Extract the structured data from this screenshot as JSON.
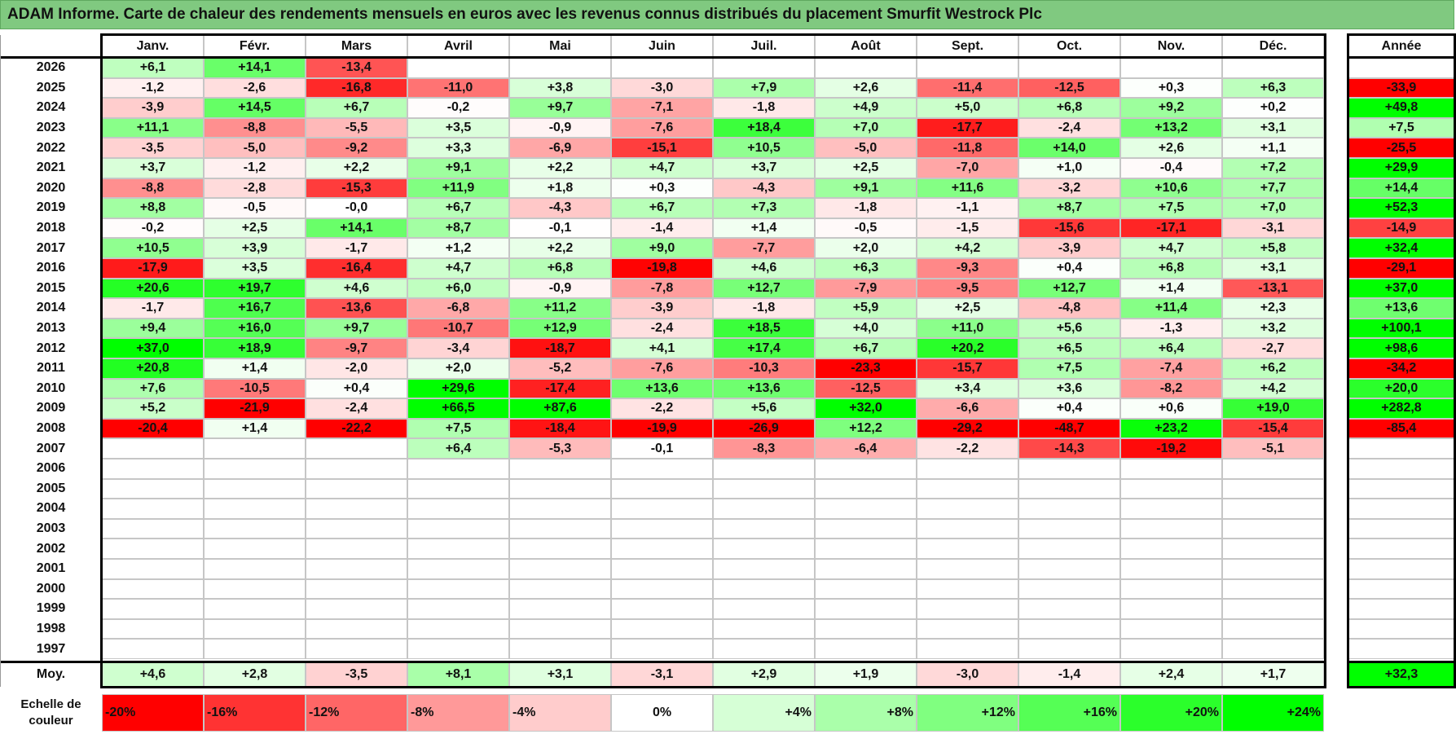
{
  "title": "ADAM Informe. Carte de chaleur des rendements mensuels en euros avec les revenus connus distribués du placement Smurfit Westrock Plc",
  "chart_data": {
    "type": "heatmap",
    "columns": [
      "Janv.",
      "Févr.",
      "Mars",
      "Avril",
      "Mai",
      "Juin",
      "Juil.",
      "Août",
      "Sept.",
      "Oct.",
      "Nov.",
      "Déc."
    ],
    "annual_header": "Année",
    "rows": [
      {
        "year": "2026",
        "values": [
          "+6,1",
          "+14,1",
          "-13,4",
          "",
          "",
          "",
          "",
          "",
          "",
          "",
          "",
          ""
        ],
        "annual": ""
      },
      {
        "year": "2025",
        "values": [
          "-1,2",
          "-2,6",
          "-16,8",
          "-11,0",
          "+3,8",
          "-3,0",
          "+7,9",
          "+2,6",
          "-11,4",
          "-12,5",
          "+0,3",
          "+6,3"
        ],
        "annual": "-33,9"
      },
      {
        "year": "2024",
        "values": [
          "-3,9",
          "+14,5",
          "+6,7",
          "-0,2",
          "+9,7",
          "-7,1",
          "-1,8",
          "+4,9",
          "+5,0",
          "+6,8",
          "+9,2",
          "+0,2"
        ],
        "annual": "+49,8"
      },
      {
        "year": "2023",
        "values": [
          "+11,1",
          "-8,8",
          "-5,5",
          "+3,5",
          "-0,9",
          "-7,6",
          "+18,4",
          "+7,0",
          "-17,7",
          "-2,4",
          "+13,2",
          "+3,1"
        ],
        "annual": "+7,5"
      },
      {
        "year": "2022",
        "values": [
          "-3,5",
          "-5,0",
          "-9,2",
          "+3,3",
          "-6,9",
          "-15,1",
          "+10,5",
          "-5,0",
          "-11,8",
          "+14,0",
          "+2,6",
          "+1,1"
        ],
        "annual": "-25,5"
      },
      {
        "year": "2021",
        "values": [
          "+3,7",
          "-1,2",
          "+2,2",
          "+9,1",
          "+2,2",
          "+4,7",
          "+3,7",
          "+2,5",
          "-7,0",
          "+1,0",
          "-0,4",
          "+7,2"
        ],
        "annual": "+29,9"
      },
      {
        "year": "2020",
        "values": [
          "-8,8",
          "-2,8",
          "-15,3",
          "+11,9",
          "+1,8",
          "+0,3",
          "-4,3",
          "+9,1",
          "+11,6",
          "-3,2",
          "+10,6",
          "+7,7"
        ],
        "annual": "+14,4"
      },
      {
        "year": "2019",
        "values": [
          "+8,8",
          "-0,5",
          "-0,0",
          "+6,7",
          "-4,3",
          "+6,7",
          "+7,3",
          "-1,8",
          "-1,1",
          "+8,7",
          "+7,5",
          "+7,0"
        ],
        "annual": "+52,3"
      },
      {
        "year": "2018",
        "values": [
          "-0,2",
          "+2,5",
          "+14,1",
          "+8,7",
          "-0,1",
          "-1,4",
          "+1,4",
          "-0,5",
          "-1,5",
          "-15,6",
          "-17,1",
          "-3,1"
        ],
        "annual": "-14,9"
      },
      {
        "year": "2017",
        "values": [
          "+10,5",
          "+3,9",
          "-1,7",
          "+1,2",
          "+2,2",
          "+9,0",
          "-7,7",
          "+2,0",
          "+4,2",
          "-3,9",
          "+4,7",
          "+5,8"
        ],
        "annual": "+32,4"
      },
      {
        "year": "2016",
        "values": [
          "-17,9",
          "+3,5",
          "-16,4",
          "+4,7",
          "+6,8",
          "-19,8",
          "+4,6",
          "+6,3",
          "-9,3",
          "+0,4",
          "+6,8",
          "+3,1"
        ],
        "annual": "-29,1"
      },
      {
        "year": "2015",
        "values": [
          "+20,6",
          "+19,7",
          "+4,6",
          "+6,0",
          "-0,9",
          "-7,8",
          "+12,7",
          "-7,9",
          "-9,5",
          "+12,7",
          "+1,4",
          "-13,1"
        ],
        "annual": "+37,0"
      },
      {
        "year": "2014",
        "values": [
          "-1,7",
          "+16,7",
          "-13,6",
          "-6,8",
          "+11,2",
          "-3,9",
          "-1,8",
          "+5,9",
          "+2,5",
          "-4,8",
          "+11,4",
          "+2,3"
        ],
        "annual": "+13,6"
      },
      {
        "year": "2013",
        "values": [
          "+9,4",
          "+16,0",
          "+9,7",
          "-10,7",
          "+12,9",
          "-2,4",
          "+18,5",
          "+4,0",
          "+11,0",
          "+5,6",
          "-1,3",
          "+3,2"
        ],
        "annual": "+100,1"
      },
      {
        "year": "2012",
        "values": [
          "+37,0",
          "+18,9",
          "-9,7",
          "-3,4",
          "-18,7",
          "+4,1",
          "+17,4",
          "+6,7",
          "+20,2",
          "+6,5",
          "+6,4",
          "-2,7"
        ],
        "annual": "+98,6"
      },
      {
        "year": "2011",
        "values": [
          "+20,8",
          "+1,4",
          "-2,0",
          "+2,0",
          "-5,2",
          "-7,6",
          "-10,3",
          "-23,3",
          "-15,7",
          "+7,5",
          "-7,4",
          "+6,2"
        ],
        "annual": "-34,2"
      },
      {
        "year": "2010",
        "values": [
          "+7,6",
          "-10,5",
          "+0,4",
          "+29,6",
          "-17,4",
          "+13,6",
          "+13,6",
          "-12,5",
          "+3,4",
          "+3,6",
          "-8,2",
          "+4,2"
        ],
        "annual": "+20,0"
      },
      {
        "year": "2009",
        "values": [
          "+5,2",
          "-21,9",
          "-2,4",
          "+66,5",
          "+87,6",
          "-2,2",
          "+5,6",
          "+32,0",
          "-6,6",
          "+0,4",
          "+0,6",
          "+19,0"
        ],
        "annual": "+282,8"
      },
      {
        "year": "2008",
        "values": [
          "-20,4",
          "+1,4",
          "-22,2",
          "+7,5",
          "-18,4",
          "-19,9",
          "-26,9",
          "+12,2",
          "-29,2",
          "-48,7",
          "+23,2",
          "-15,4"
        ],
        "annual": "-85,4"
      },
      {
        "year": "2007",
        "values": [
          "",
          "",
          "",
          "+6,4",
          "-5,3",
          "-0,1",
          "-8,3",
          "-6,4",
          "-2,2",
          "-14,3",
          "-19,2",
          "-5,1"
        ],
        "annual": ""
      },
      {
        "year": "2006",
        "values": [
          "",
          "",
          "",
          "",
          "",
          "",
          "",
          "",
          "",
          "",
          "",
          ""
        ],
        "annual": ""
      },
      {
        "year": "2005",
        "values": [
          "",
          "",
          "",
          "",
          "",
          "",
          "",
          "",
          "",
          "",
          "",
          ""
        ],
        "annual": ""
      },
      {
        "year": "2004",
        "values": [
          "",
          "",
          "",
          "",
          "",
          "",
          "",
          "",
          "",
          "",
          "",
          ""
        ],
        "annual": ""
      },
      {
        "year": "2003",
        "values": [
          "",
          "",
          "",
          "",
          "",
          "",
          "",
          "",
          "",
          "",
          "",
          ""
        ],
        "annual": ""
      },
      {
        "year": "2002",
        "values": [
          "",
          "",
          "",
          "",
          "",
          "",
          "",
          "",
          "",
          "",
          "",
          ""
        ],
        "annual": ""
      },
      {
        "year": "2001",
        "values": [
          "",
          "",
          "",
          "",
          "",
          "",
          "",
          "",
          "",
          "",
          "",
          ""
        ],
        "annual": ""
      },
      {
        "year": "2000",
        "values": [
          "",
          "",
          "",
          "",
          "",
          "",
          "",
          "",
          "",
          "",
          "",
          ""
        ],
        "annual": ""
      },
      {
        "year": "1999",
        "values": [
          "",
          "",
          "",
          "",
          "",
          "",
          "",
          "",
          "",
          "",
          "",
          ""
        ],
        "annual": ""
      },
      {
        "year": "1998",
        "values": [
          "",
          "",
          "",
          "",
          "",
          "",
          "",
          "",
          "",
          "",
          "",
          ""
        ],
        "annual": ""
      },
      {
        "year": "1997",
        "values": [
          "",
          "",
          "",
          "",
          "",
          "",
          "",
          "",
          "",
          "",
          "",
          ""
        ],
        "annual": ""
      }
    ],
    "average": {
      "label": "Moy.",
      "values": [
        "+4,6",
        "+2,8",
        "-3,5",
        "+8,1",
        "+3,1",
        "-3,1",
        "+2,9",
        "+1,9",
        "-3,0",
        "-1,4",
        "+2,4",
        "+1,7"
      ],
      "annual": "+32,3"
    },
    "color_scale": {
      "label": "Echelle de couleur",
      "stops": [
        {
          "value": -20,
          "label": "-20%",
          "color": "#ff0000"
        },
        {
          "value": -16,
          "label": "-16%",
          "color": "#ff3333"
        },
        {
          "value": -12,
          "label": "-12%",
          "color": "#ff6666"
        },
        {
          "value": -8,
          "label": "-8%",
          "color": "#ff9999"
        },
        {
          "value": -4,
          "label": "-4%",
          "color": "#ffcccc"
        },
        {
          "value": 0,
          "label": "0%",
          "color": "#ffffff"
        },
        {
          "value": 4,
          "label": "+4%",
          "color": "#d6ffd6"
        },
        {
          "value": 8,
          "label": "+8%",
          "color": "#aaffaa"
        },
        {
          "value": 12,
          "label": "+12%",
          "color": "#80ff80"
        },
        {
          "value": 16,
          "label": "+16%",
          "color": "#55ff55"
        },
        {
          "value": 20,
          "label": "+20%",
          "color": "#2bff2b"
        },
        {
          "value": 24,
          "label": "+24%",
          "color": "#00ff00"
        }
      ]
    }
  }
}
